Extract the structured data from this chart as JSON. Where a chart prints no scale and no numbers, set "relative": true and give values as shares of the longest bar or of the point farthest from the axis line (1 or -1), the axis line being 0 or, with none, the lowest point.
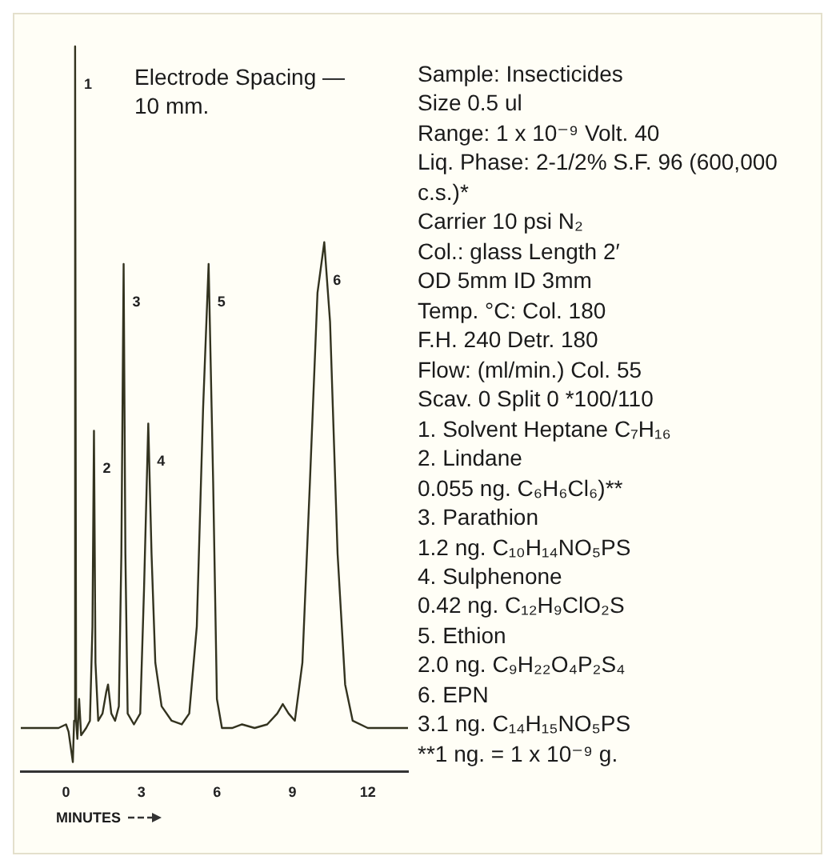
{
  "chart_data": {
    "type": "line",
    "relative": true,
    "color": "#33331f",
    "marker": "none",
    "line_style": "solid",
    "grid": false,
    "legend": false,
    "tick_labels": "x",
    "xlabel": "MINUTES",
    "xlim": [
      -1.8,
      13.6
    ],
    "xticks": [
      0,
      3,
      6,
      9,
      12
    ],
    "x": [
      -1.8,
      -0.3,
      0.0,
      0.1,
      0.2,
      0.27,
      0.32,
      0.36,
      0.4,
      0.45,
      0.52,
      0.6,
      0.8,
      0.95,
      1.05,
      1.11,
      1.17,
      1.28,
      1.45,
      1.6,
      1.67,
      1.8,
      1.95,
      2.1,
      2.2,
      2.29,
      2.36,
      2.45,
      2.7,
      2.95,
      3.1,
      3.27,
      3.4,
      3.55,
      3.8,
      4.2,
      4.6,
      4.9,
      5.2,
      5.45,
      5.67,
      5.85,
      6.0,
      6.2,
      6.6,
      7.0,
      7.5,
      8.0,
      8.4,
      8.62,
      8.85,
      9.1,
      9.4,
      9.7,
      10.0,
      10.27,
      10.5,
      10.8,
      11.1,
      11.4,
      12.0,
      13.6
    ],
    "values": [
      0.06,
      0.06,
      0.065,
      0.055,
      0.03,
      0.013,
      0.07,
      1.0,
      0.07,
      0.045,
      0.1,
      0.05,
      0.06,
      0.07,
      0.2,
      0.47,
      0.15,
      0.07,
      0.08,
      0.11,
      0.12,
      0.08,
      0.07,
      0.09,
      0.3,
      0.7,
      0.3,
      0.08,
      0.065,
      0.08,
      0.25,
      0.48,
      0.3,
      0.15,
      0.09,
      0.07,
      0.065,
      0.08,
      0.2,
      0.5,
      0.7,
      0.4,
      0.1,
      0.06,
      0.06,
      0.065,
      0.06,
      0.065,
      0.08,
      0.093,
      0.08,
      0.07,
      0.15,
      0.4,
      0.66,
      0.73,
      0.62,
      0.3,
      0.12,
      0.07,
      0.06,
      0.06
    ],
    "annotations": [
      "Electrode Spacing —10 mm.",
      {
        "text": "1",
        "x": 0.36,
        "y": 1.0
      },
      {
        "text": "2",
        "x": 1.11,
        "y": 0.47
      },
      {
        "text": "3",
        "x": 2.29,
        "y": 0.7
      },
      {
        "text": "4",
        "x": 3.27,
        "y": 0.48
      },
      {
        "text": "5",
        "x": 5.67,
        "y": 0.7
      },
      {
        "text": "6",
        "x": 10.27,
        "y": 0.73
      },
      "Sample: Insecticides",
      "Size 0.5 ul",
      "Range: 1 x 10⁻⁹ Volt. 40",
      "Liq. Phase: 2-1/2% S.F. 96 (600,000 c.s.)*",
      "Carrier 10 psi N₂",
      "Col.: glass  Length 2′",
      "OD 5mm ID 3mm",
      "Temp. °C: Col. 180",
      "F.H. 240  Detr. 180",
      "Flow: (ml/min.) Col. 55",
      "Scav. 0 Split 0  *100/110",
      "1. Solvent Heptane C₇H₁₆",
      "2. Lindane",
      "0.055 ng. C₆H₆Cl₆)**",
      "3. Parathion",
      "1.2 ng. C₁₀H₁₄NO₅PS",
      "4. Sulphenone",
      "0.42 ng. C₁₂H₉ClO₂S",
      "5. Ethion",
      "2.0 ng. C₉H₂₂O₄P₂S₄",
      "6. EPN",
      "3.1 ng. C₁₄H₁₅NO₅PS",
      "**1 ng. = 1 x 10⁻⁹ g."
    ]
  }
}
